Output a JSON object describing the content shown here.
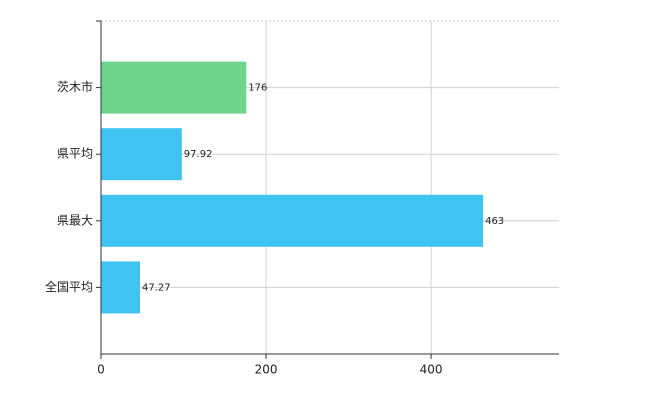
{
  "chart_data": {
    "type": "bar",
    "orientation": "horizontal",
    "categories": [
      "茨木市",
      "県平均",
      "県最大",
      "全国平均"
    ],
    "values": [
      176,
      97.92,
      463,
      47.27
    ],
    "colors": [
      "#6dd48a",
      "#3ec3f2",
      "#3ec3f2",
      "#3ec3f2"
    ],
    "xlim": [
      0,
      555
    ],
    "xticks": [
      0,
      200,
      400
    ],
    "grid": true
  }
}
